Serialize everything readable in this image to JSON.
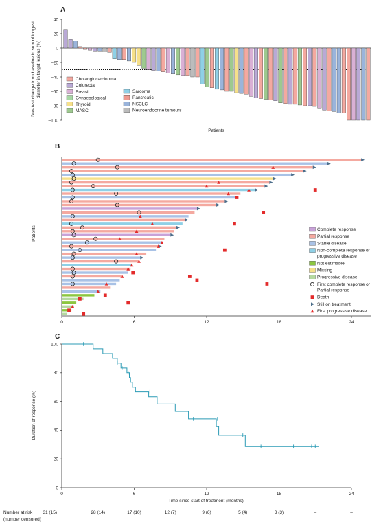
{
  "colors": {
    "cholangiocarcinoma": "#f4a9a0",
    "colorectal": "#b9a9d6",
    "breast": "#d9b0d5",
    "gynaecological": "#a7d7a4",
    "thyroid": "#f6e08a",
    "masc": "#9ec98f",
    "sarcoma": "#8fd0e6",
    "pancreatic": "#ee9a8f",
    "nsclc": "#9ab4db",
    "neuroendocrine": "#bcbcbc",
    "complete_response": "#c8a2d8",
    "partial_response": "#f4a9a0",
    "stable_disease": "#a9c2e6",
    "non_cr_pd": "#8fd0e6",
    "not_estimable": "#8cc63f",
    "missing": "#f6e08a",
    "progressive": "#b5d9a0",
    "marker_red": "#e32b2b",
    "still_arrow": "#4b6d8a",
    "km_line": "#2b9bb5"
  },
  "chart_data": [
    {
      "panel": "A",
      "type": "bar",
      "ylabel": "Greatest change from baseline in sum of longest diameter in target lesions (%)",
      "xlabel": "Patients",
      "ylim": [
        -100,
        40
      ],
      "yticks": [
        "40",
        "20",
        "0",
        "–20",
        "–40",
        "–60",
        "–80",
        "–100"
      ],
      "reference_line": -30,
      "legend_col1": [
        "Cholangiocarcinoma",
        "Colorectal",
        "Breast",
        "Gynaecological",
        "Thyroid",
        "MASC"
      ],
      "legend_col2": [
        "Sarcoma",
        "Pancreatic",
        "NSCLC",
        "Neuroendocrine tumours"
      ],
      "legend_keys_col1": [
        "cholangiocarcinoma",
        "colorectal",
        "breast",
        "gynaecological",
        "thyroid",
        "masc"
      ],
      "legend_keys_col2": [
        "sarcoma",
        "pancreatic",
        "nsclc",
        "neuroendocrine"
      ],
      "bars": [
        {
          "v": 26,
          "c": "colorectal"
        },
        {
          "v": 12,
          "c": "colorectal"
        },
        {
          "v": 10,
          "c": "nsclc"
        },
        {
          "v": 2,
          "c": "cholangiocarcinoma"
        },
        {
          "v": -2,
          "c": "cholangiocarcinoma"
        },
        {
          "v": -3,
          "c": "breast"
        },
        {
          "v": -4,
          "c": "colorectal"
        },
        {
          "v": -4,
          "c": "nsclc"
        },
        {
          "v": -5,
          "c": "neuroendocrine"
        },
        {
          "v": -6,
          "c": "cholangiocarcinoma"
        },
        {
          "v": -15,
          "c": "sarcoma"
        },
        {
          "v": -16,
          "c": "nsclc"
        },
        {
          "v": -16,
          "c": "cholangiocarcinoma"
        },
        {
          "v": -18,
          "c": "nsclc"
        },
        {
          "v": -20,
          "c": "thyroid"
        },
        {
          "v": -24,
          "c": "thyroid"
        },
        {
          "v": -28,
          "c": "masc"
        },
        {
          "v": -30,
          "c": "breast"
        },
        {
          "v": -31,
          "c": "colorectal"
        },
        {
          "v": -32,
          "c": "nsclc"
        },
        {
          "v": -33,
          "c": "cholangiocarcinoma"
        },
        {
          "v": -35,
          "c": "breast"
        },
        {
          "v": -36,
          "c": "nsclc"
        },
        {
          "v": -37,
          "c": "masc"
        },
        {
          "v": -38,
          "c": "breast"
        },
        {
          "v": -38,
          "c": "cholangiocarcinoma"
        },
        {
          "v": -40,
          "c": "neuroendocrine"
        },
        {
          "v": -40,
          "c": "cholangiocarcinoma"
        },
        {
          "v": -50,
          "c": "sarcoma"
        },
        {
          "v": -54,
          "c": "masc"
        },
        {
          "v": -55,
          "c": "cholangiocarcinoma"
        },
        {
          "v": -57,
          "c": "sarcoma"
        },
        {
          "v": -58,
          "c": "nsclc"
        },
        {
          "v": -60,
          "c": "cholangiocarcinoma"
        },
        {
          "v": -60,
          "c": "masc"
        },
        {
          "v": -62,
          "c": "thyroid"
        },
        {
          "v": -63,
          "c": "nsclc"
        },
        {
          "v": -64,
          "c": "cholangiocarcinoma"
        },
        {
          "v": -67,
          "c": "breast"
        },
        {
          "v": -69,
          "c": "colorectal"
        },
        {
          "v": -70,
          "c": "cholangiocarcinoma"
        },
        {
          "v": -71,
          "c": "masc"
        },
        {
          "v": -72,
          "c": "cholangiocarcinoma"
        },
        {
          "v": -73,
          "c": "colorectal"
        },
        {
          "v": -76,
          "c": "masc"
        },
        {
          "v": -77,
          "c": "cholangiocarcinoma"
        },
        {
          "v": -78,
          "c": "colorectal"
        },
        {
          "v": -78,
          "c": "cholangiocarcinoma"
        },
        {
          "v": -79,
          "c": "masc"
        },
        {
          "v": -80,
          "c": "cholangiocarcinoma"
        },
        {
          "v": -80,
          "c": "colorectal"
        },
        {
          "v": -81,
          "c": "cholangiocarcinoma"
        },
        {
          "v": -84,
          "c": "breast"
        },
        {
          "v": -86,
          "c": "colorectal"
        },
        {
          "v": -87,
          "c": "cholangiocarcinoma"
        },
        {
          "v": -88,
          "c": "nsclc"
        },
        {
          "v": -90,
          "c": "nsclc"
        },
        {
          "v": -90,
          "c": "cholangiocarcinoma"
        },
        {
          "v": -100,
          "c": "cholangiocarcinoma"
        },
        {
          "v": -100,
          "c": "breast"
        },
        {
          "v": -100,
          "c": "colorectal"
        },
        {
          "v": -100,
          "c": "nsclc"
        },
        {
          "v": -100,
          "c": "cholangiocarcinoma"
        }
      ]
    },
    {
      "panel": "B",
      "type": "swimmer",
      "ylabel": "Patients",
      "xlim": [
        0,
        26
      ],
      "xticks": [
        "0",
        "6",
        "12",
        "18",
        "24"
      ],
      "legend": [
        {
          "label": "Complete response",
          "kind": "box",
          "c": "complete_response"
        },
        {
          "label": "Partial response",
          "kind": "box",
          "c": "partial_response"
        },
        {
          "label": "Stable disease",
          "kind": "box",
          "c": "stable_disease"
        },
        {
          "label": "Non-complete response or",
          "label2": "progressive disease",
          "kind": "box",
          "c": "non_cr_pd"
        },
        {
          "label": "Not estimable",
          "kind": "box",
          "c": "not_estimable"
        },
        {
          "label": "Missing",
          "kind": "box",
          "c": "missing"
        },
        {
          "label": "Progressive disease",
          "kind": "box",
          "c": "progressive"
        },
        {
          "label": "First complete response or",
          "label2": "Partial response",
          "kind": "circle"
        },
        {
          "label": "Death",
          "kind": "square"
        },
        {
          "label": "Still on treatment",
          "kind": "arrow"
        },
        {
          "label": "First progressive disease",
          "kind": "triangle"
        }
      ],
      "rows": [
        {
          "end": 24.8,
          "c": "partial_response",
          "cr": 3.0,
          "ongoing": true
        },
        {
          "end": 22.0,
          "c": "stable_disease",
          "cr": 1.0,
          "ongoing": true
        },
        {
          "end": 20.8,
          "c": "partial_response",
          "cr": 4.6,
          "pd": 17.5,
          "ongoing": true
        },
        {
          "end": 20.0,
          "c": "partial_response",
          "cr": 0.8,
          "ongoing": true
        },
        {
          "end": 19.0,
          "c": "stable_disease",
          "cr": 0.9,
          "ongoing": true
        },
        {
          "end": 17.5,
          "c": "missing",
          "cr": 1.0,
          "ongoing": true
        },
        {
          "end": 17.2,
          "c": "partial_response",
          "cr": 0.8,
          "pd": 13.0,
          "ongoing": true
        },
        {
          "end": 16.8,
          "c": "partial_response",
          "cr": 2.6,
          "pd": 12.0,
          "ongoing": true
        },
        {
          "end": 16.0,
          "c": "non_cr_pd",
          "cr": 0.9,
          "pd": 15.5,
          "death": 21.0,
          "ongoing": true
        },
        {
          "end": 14.8,
          "c": "partial_response",
          "cr": 4.5,
          "pd": 13.8
        },
        {
          "end": 14.5,
          "c": "stable_disease",
          "cr": 0.9,
          "death": 14.5
        },
        {
          "end": 13.5,
          "c": "partial_response",
          "cr": 0.8,
          "ongoing": true
        },
        {
          "end": 12.8,
          "c": "partial_response",
          "cr": 4.6,
          "ongoing": true
        },
        {
          "end": 11.2,
          "c": "complete_response",
          "ongoing": true
        },
        {
          "end": 11.0,
          "c": "partial_response",
          "cr": 6.4,
          "death": 16.7
        },
        {
          "end": 10.5,
          "c": "stable_disease",
          "cr": 0.9,
          "pd": 6.5
        },
        {
          "end": 10.2,
          "c": "partial_response",
          "ongoing": true
        },
        {
          "end": 10.0,
          "c": "non_cr_pd",
          "cr": 0.8,
          "pd": 7.5,
          "death": 14.3
        },
        {
          "end": 9.5,
          "c": "partial_response",
          "cr": 1.7,
          "ongoing": true
        },
        {
          "end": 9.3,
          "c": "partial_response",
          "cr": 0.9,
          "pd": 6.2
        },
        {
          "end": 9.0,
          "c": "complete_response",
          "cr": 1.0,
          "ongoing": true
        },
        {
          "end": 8.5,
          "c": "partial_response",
          "cr": 2.8,
          "pd": 4.8
        },
        {
          "end": 8.3,
          "c": "stable_disease",
          "cr": 2.1,
          "pd": 8.3
        },
        {
          "end": 8.0,
          "c": "partial_response",
          "cr": 0.8,
          "pd": 8.0,
          "ongoing": true
        },
        {
          "end": 7.8,
          "c": "stable_disease",
          "cr": 1.5,
          "death": 13.5
        },
        {
          "end": 7.0,
          "c": "partial_response",
          "cr": 1.0,
          "pd": 6.2
        },
        {
          "end": 6.5,
          "c": "stable_disease",
          "cr": 0.9,
          "ongoing": true
        },
        {
          "end": 6.4,
          "c": "partial_response",
          "cr": 4.5,
          "pd": 6.4
        },
        {
          "end": 5.8,
          "c": "non_cr_pd",
          "pd": 5.8
        },
        {
          "end": 5.7,
          "c": "partial_response",
          "cr": 0.9,
          "pd": 5.5
        },
        {
          "end": 5.5,
          "c": "stable_disease",
          "cr": 1.0,
          "death": 5.9
        },
        {
          "end": 5.0,
          "c": "partial_response",
          "cr": 0.9,
          "death": 10.6,
          "pd": 5.0
        },
        {
          "end": 4.8,
          "c": "stable_disease",
          "death": 11.2
        },
        {
          "end": 4.5,
          "c": "stable_disease",
          "cr": 0.9,
          "pd": 3.7,
          "death": 17.0
        },
        {
          "end": 4.0,
          "c": "partial_response"
        },
        {
          "end": 3.2,
          "c": "stable_disease",
          "pd": 3.0
        },
        {
          "end": 2.7,
          "c": "not_estimable",
          "death": 3.6
        },
        {
          "end": 1.8,
          "c": "progressive",
          "death": 1.5
        },
        {
          "end": 1.2,
          "c": "not_estimable",
          "death": 5.5
        },
        {
          "end": 1.0,
          "c": "progressive",
          "pd": 0.9
        },
        {
          "end": 0.8,
          "c": "not_estimable",
          "death": 0.6
        },
        {
          "end": 0.4,
          "c": "progressive",
          "death": 1.8
        }
      ]
    },
    {
      "panel": "C",
      "type": "line",
      "ylabel": "Duration of response (%)",
      "xlabel": "Time since start of treatment (months)",
      "xlim": [
        0,
        24
      ],
      "ylim": [
        0,
        100
      ],
      "xticks": [
        "0",
        "6",
        "12",
        "18",
        "24"
      ],
      "yticks": [
        "100",
        "80",
        "60",
        "40",
        "20",
        "0"
      ],
      "km_steps": [
        [
          0,
          100
        ],
        [
          2.6,
          100
        ],
        [
          2.6,
          96.7
        ],
        [
          3.4,
          96.7
        ],
        [
          3.4,
          93.3
        ],
        [
          4.2,
          93.3
        ],
        [
          4.2,
          90
        ],
        [
          4.6,
          90
        ],
        [
          4.6,
          86.7
        ],
        [
          4.9,
          86.7
        ],
        [
          4.9,
          83.3
        ],
        [
          5.4,
          83.3
        ],
        [
          5.4,
          80
        ],
        [
          5.6,
          80
        ],
        [
          5.6,
          76.7
        ],
        [
          5.7,
          76.7
        ],
        [
          5.7,
          73.3
        ],
        [
          5.85,
          73.3
        ],
        [
          5.85,
          70
        ],
        [
          6.1,
          70
        ],
        [
          6.1,
          66.7
        ],
        [
          7.2,
          66.7
        ],
        [
          7.2,
          63.3
        ],
        [
          7.9,
          63.3
        ],
        [
          7.9,
          58.2
        ],
        [
          9.4,
          58.2
        ],
        [
          9.4,
          53.1
        ],
        [
          10.5,
          53.1
        ],
        [
          10.5,
          47.9
        ],
        [
          12.8,
          47.9
        ],
        [
          12.8,
          42.5
        ],
        [
          13.0,
          42.5
        ],
        [
          13.0,
          36.4
        ],
        [
          15.2,
          36.4
        ],
        [
          15.2,
          28.6
        ],
        [
          21.3,
          28.6
        ]
      ],
      "censored": [
        [
          1.8,
          100
        ],
        [
          4.6,
          86.7
        ],
        [
          5.0,
          83.3
        ],
        [
          5.5,
          80
        ],
        [
          7.3,
          66.7
        ],
        [
          10.9,
          47.9
        ],
        [
          12.9,
          47.9
        ],
        [
          15.0,
          36.4
        ],
        [
          16.5,
          28.6
        ],
        [
          19.2,
          28.6
        ],
        [
          20.7,
          28.6
        ],
        [
          20.9,
          28.6
        ],
        [
          21.0,
          28.6
        ]
      ],
      "at_risk_title": "Number at risk",
      "at_risk_sub": "(number censored)",
      "at_risk": [
        "31 (15)",
        "28 (14)",
        "17 (10)",
        "12 (7)",
        "9 (6)",
        "5 (4)",
        "3 (3)",
        "–",
        "–"
      ]
    }
  ]
}
